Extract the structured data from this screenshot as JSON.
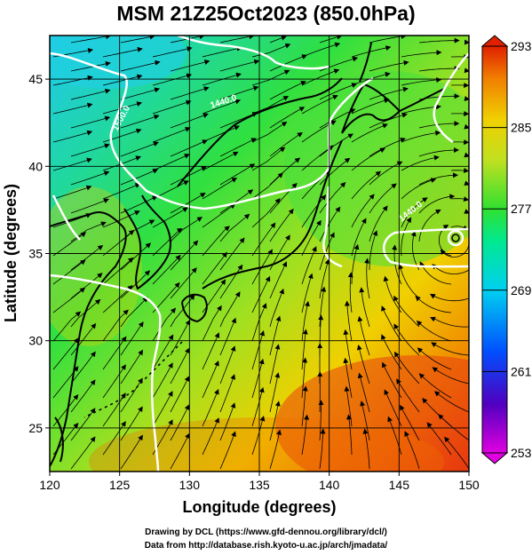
{
  "title": "MSM 21Z25Oct2023 (850.0hPa)",
  "axes": {
    "xlabel": "Longitude (degrees)",
    "ylabel": "Latitude  (degrees)",
    "x_ticks": [
      120,
      125,
      130,
      135,
      140,
      145,
      150
    ],
    "y_ticks": [
      25,
      30,
      35,
      40,
      45
    ],
    "xlim": [
      120,
      150
    ],
    "ylim": [
      22.5,
      47.5
    ]
  },
  "colorbar": {
    "ticks": [
      293,
      285,
      277,
      269,
      261,
      253
    ],
    "min": 253,
    "max": 293,
    "colors": [
      "#e000e0",
      "#3020c0",
      "#0070ff",
      "#00d0f0",
      "#00e890",
      "#30e030",
      "#c0e020",
      "#f0d000",
      "#f08000",
      "#e02000"
    ]
  },
  "contour_labels": [
    "1500.0",
    "1440.0",
    "1440.0"
  ],
  "map_colors": {
    "coast": "#000000",
    "contour": "#ffffff",
    "streamline": "#000000",
    "grid": "#000000"
  },
  "credits": {
    "line1": "Drawing by DCL (https://www.gfd-dennou.org/library/dcl/)",
    "line2": "Data from http://database.rish.kyoto-u.ac.jp/arch/jmadata/"
  }
}
